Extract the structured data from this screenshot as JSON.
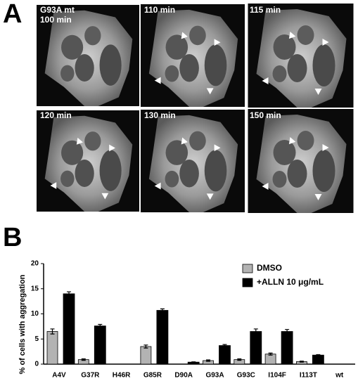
{
  "panel_a": {
    "label": "A",
    "frames": [
      {
        "lines": [
          "G93A mt",
          "100 min"
        ]
      },
      {
        "lines": [
          "110 min"
        ]
      },
      {
        "lines": [
          "115 min"
        ]
      },
      {
        "lines": [
          "120 min"
        ]
      },
      {
        "lines": [
          "130 min"
        ]
      },
      {
        "lines": [
          "150 min"
        ]
      }
    ]
  },
  "panel_b": {
    "label": "B"
  },
  "chart_data": {
    "type": "bar",
    "ylabel": "% of cells with aggregation",
    "categories": [
      "A4V",
      "G37R",
      "H46R",
      "G85R",
      "D90A",
      "G93A",
      "G93C",
      "I104F",
      "I113T",
      "wt"
    ],
    "series": [
      {
        "name": "DMSO",
        "color": "#b3b3b3",
        "values": [
          6.5,
          0.9,
          0,
          3.5,
          0,
          0.7,
          0.9,
          2.0,
          0.5,
          0
        ],
        "errors": [
          0.5,
          0.15,
          0,
          0.3,
          0,
          0.15,
          0.15,
          0.2,
          0.1,
          0
        ]
      },
      {
        "name": "+ALLN 10 μg/mL",
        "color": "#000000",
        "values": [
          14.0,
          7.6,
          0,
          10.7,
          0.4,
          3.7,
          6.5,
          6.5,
          1.8,
          0
        ],
        "errors": [
          0.4,
          0.3,
          0,
          0.3,
          0.05,
          0.2,
          0.5,
          0.4,
          0.1,
          0
        ]
      }
    ],
    "ylim": [
      0,
      20
    ],
    "yticks": [
      0,
      5,
      10,
      15,
      20
    ],
    "grid": false
  }
}
